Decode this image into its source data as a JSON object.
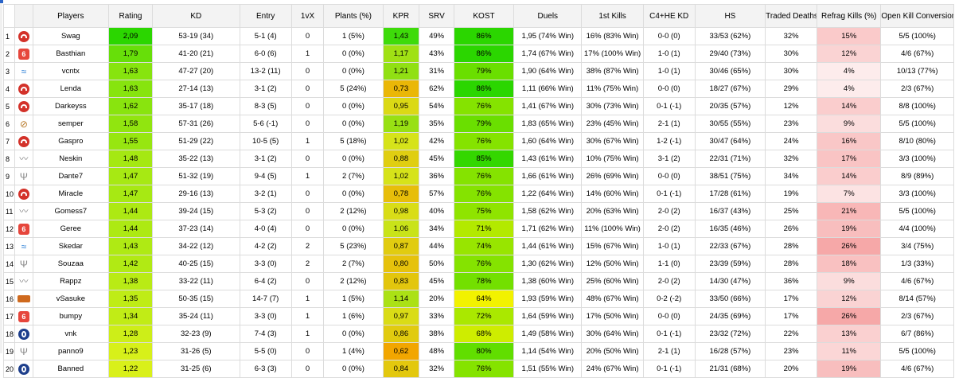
{
  "columns": [
    "Players",
    "Rating",
    "KD",
    "Entry",
    "1vX",
    "Plants (%)",
    "KPR",
    "SRV",
    "KOST",
    "Duels",
    "1st Kills",
    "C4+HE KD",
    "HS",
    "Traded Deaths",
    "Refrag Kills (%)",
    "Open Kill Conversion"
  ],
  "colors": {
    "rating_top": "#2bd600",
    "rating_bottom": "#d9f01a",
    "kpr_high": "#3edb0a",
    "kpr_mid": "#d6e41a",
    "kpr_low": "#f2a600",
    "kost_high": "#2bd600",
    "kost_low": "#f2f200",
    "refrag_high": "#f6a8a8",
    "refrag_low": "#fdecec"
  },
  "rows": [
    {
      "idx": "1",
      "logo": "red-circle-icon",
      "player": "Swag",
      "rating": "2,09",
      "kd": "53-19 (34)",
      "entry": "5-1 (4)",
      "onevx": "0",
      "plants": "1 (5%)",
      "kpr": "1,43",
      "srv": "49%",
      "kost": "86%",
      "duels": "1,95 (74% Win)",
      "first_kills": "16% (83% Win)",
      "c4he": "0-0 (0)",
      "hs": "33/53 (62%)",
      "traded": "32%",
      "refrag": "15%",
      "okc": "5/5 (100%)"
    },
    {
      "idx": "2",
      "logo": "hexagon-six-icon",
      "player": "Basthian",
      "rating": "1,79",
      "kd": "41-20 (21)",
      "entry": "6-0 (6)",
      "onevx": "1",
      "plants": "0 (0%)",
      "kpr": "1,17",
      "srv": "43%",
      "kost": "86%",
      "duels": "1,74 (67% Win)",
      "first_kills": "17% (100% Win)",
      "c4he": "1-0 (1)",
      "hs": "29/40 (73%)",
      "traded": "30%",
      "refrag": "12%",
      "okc": "4/6 (67%)"
    },
    {
      "idx": "3",
      "logo": "blue-wave-icon",
      "player": "vcntx",
      "rating": "1,63",
      "kd": "47-27 (20)",
      "entry": "13-2 (11)",
      "onevx": "0",
      "plants": "0 (0%)",
      "kpr": "1,21",
      "srv": "31%",
      "kost": "79%",
      "duels": "1,90 (64% Win)",
      "first_kills": "38% (87% Win)",
      "c4he": "1-0 (1)",
      "hs": "30/46 (65%)",
      "traded": "30%",
      "refrag": "4%",
      "okc": "10/13 (77%)"
    },
    {
      "idx": "4",
      "logo": "red-circle-icon",
      "player": "Lenda",
      "rating": "1,63",
      "kd": "27-14 (13)",
      "entry": "3-1 (2)",
      "onevx": "0",
      "plants": "5 (24%)",
      "kpr": "0,73",
      "srv": "62%",
      "kost": "86%",
      "duels": "1,11 (66% Win)",
      "first_kills": "11% (75% Win)",
      "c4he": "0-0 (0)",
      "hs": "18/27 (67%)",
      "traded": "29%",
      "refrag": "4%",
      "okc": "2/3 (67%)"
    },
    {
      "idx": "5",
      "logo": "red-circle-icon",
      "player": "Darkeyss",
      "rating": "1,62",
      "kd": "35-17 (18)",
      "entry": "8-3 (5)",
      "onevx": "0",
      "plants": "0 (0%)",
      "kpr": "0,95",
      "srv": "54%",
      "kost": "76%",
      "duels": "1,41 (67% Win)",
      "first_kills": "30% (73% Win)",
      "c4he": "0-1 (-1)",
      "hs": "20/35 (57%)",
      "traded": "12%",
      "refrag": "14%",
      "okc": "8/8 (100%)"
    },
    {
      "idx": "6",
      "logo": "striped-circle-icon",
      "player": "semper",
      "rating": "1,58",
      "kd": "57-31 (26)",
      "entry": "5-6 (-1)",
      "onevx": "0",
      "plants": "0 (0%)",
      "kpr": "1,19",
      "srv": "35%",
      "kost": "79%",
      "duels": "1,83 (65% Win)",
      "first_kills": "23% (45% Win)",
      "c4he": "2-1 (1)",
      "hs": "30/55 (55%)",
      "traded": "23%",
      "refrag": "9%",
      "okc": "5/5 (100%)"
    },
    {
      "idx": "7",
      "logo": "red-circle-icon",
      "player": "Gaspro",
      "rating": "1,55",
      "kd": "51-29 (22)",
      "entry": "10-5 (5)",
      "onevx": "1",
      "plants": "5 (18%)",
      "kpr": "1,02",
      "srv": "42%",
      "kost": "76%",
      "duels": "1,60 (64% Win)",
      "first_kills": "30% (67% Win)",
      "c4he": "1-2 (-1)",
      "hs": "30/47 (64%)",
      "traded": "24%",
      "refrag": "16%",
      "okc": "8/10 (80%)"
    },
    {
      "idx": "8",
      "logo": "wing-icon",
      "player": "Neskin",
      "rating": "1,48",
      "kd": "35-22 (13)",
      "entry": "3-1 (2)",
      "onevx": "0",
      "plants": "0 (0%)",
      "kpr": "0,88",
      "srv": "45%",
      "kost": "85%",
      "duels": "1,43 (61% Win)",
      "first_kills": "10% (75% Win)",
      "c4he": "3-1 (2)",
      "hs": "22/31 (71%)",
      "traded": "32%",
      "refrag": "17%",
      "okc": "3/3 (100%)"
    },
    {
      "idx": "9",
      "logo": "trident-icon",
      "player": "Dante7",
      "rating": "1,47",
      "kd": "51-32 (19)",
      "entry": "9-4 (5)",
      "onevx": "1",
      "plants": "2 (7%)",
      "kpr": "1,02",
      "srv": "36%",
      "kost": "76%",
      "duels": "1,66 (61% Win)",
      "first_kills": "26% (69% Win)",
      "c4he": "0-0 (0)",
      "hs": "38/51 (75%)",
      "traded": "34%",
      "refrag": "14%",
      "okc": "8/9 (89%)"
    },
    {
      "idx": "10",
      "logo": "red-circle-icon",
      "player": "Miracle",
      "rating": "1,47",
      "kd": "29-16 (13)",
      "entry": "3-2 (1)",
      "onevx": "0",
      "plants": "0 (0%)",
      "kpr": "0,78",
      "srv": "57%",
      "kost": "76%",
      "duels": "1,22 (64% Win)",
      "first_kills": "14% (60% Win)",
      "c4he": "0-1 (-1)",
      "hs": "17/28 (61%)",
      "traded": "19%",
      "refrag": "7%",
      "okc": "3/3 (100%)"
    },
    {
      "idx": "11",
      "logo": "wing-icon",
      "player": "Gomess7",
      "rating": "1,44",
      "kd": "39-24 (15)",
      "entry": "5-3 (2)",
      "onevx": "0",
      "plants": "2 (12%)",
      "kpr": "0,98",
      "srv": "40%",
      "kost": "75%",
      "duels": "1,58 (62% Win)",
      "first_kills": "20% (63% Win)",
      "c4he": "2-0 (2)",
      "hs": "16/37 (43%)",
      "traded": "25%",
      "refrag": "21%",
      "okc": "5/5 (100%)"
    },
    {
      "idx": "12",
      "logo": "hexagon-six-icon",
      "player": "Geree",
      "rating": "1,44",
      "kd": "37-23 (14)",
      "entry": "4-0 (4)",
      "onevx": "0",
      "plants": "0 (0%)",
      "kpr": "1,06",
      "srv": "34%",
      "kost": "71%",
      "duels": "1,71 (62% Win)",
      "first_kills": "11% (100% Win)",
      "c4he": "2-0 (2)",
      "hs": "16/35 (46%)",
      "traded": "26%",
      "refrag": "19%",
      "okc": "4/4 (100%)"
    },
    {
      "idx": "13",
      "logo": "blue-wave-icon",
      "player": "Skedar",
      "rating": "1,43",
      "kd": "34-22 (12)",
      "entry": "4-2 (2)",
      "onevx": "2",
      "plants": "5 (23%)",
      "kpr": "0,87",
      "srv": "44%",
      "kost": "74%",
      "duels": "1,44 (61% Win)",
      "first_kills": "15% (67% Win)",
      "c4he": "1-0 (1)",
      "hs": "22/33 (67%)",
      "traded": "28%",
      "refrag": "26%",
      "okc": "3/4 (75%)"
    },
    {
      "idx": "14",
      "logo": "trident-icon",
      "player": "Souzaa",
      "rating": "1,42",
      "kd": "40-25 (15)",
      "entry": "3-3 (0)",
      "onevx": "2",
      "plants": "2 (7%)",
      "kpr": "0,80",
      "srv": "50%",
      "kost": "76%",
      "duels": "1,30 (62% Win)",
      "first_kills": "12% (50% Win)",
      "c4he": "1-1 (0)",
      "hs": "23/39 (59%)",
      "traded": "28%",
      "refrag": "18%",
      "okc": "1/3 (33%)"
    },
    {
      "idx": "15",
      "logo": "wing-icon",
      "player": "Rappz",
      "rating": "1,38",
      "kd": "33-22 (11)",
      "entry": "6-4 (2)",
      "onevx": "0",
      "plants": "2 (12%)",
      "kpr": "0,83",
      "srv": "45%",
      "kost": "78%",
      "duels": "1,38 (60% Win)",
      "first_kills": "25% (60% Win)",
      "c4he": "2-0 (2)",
      "hs": "14/30 (47%)",
      "traded": "36%",
      "refrag": "9%",
      "okc": "4/6 (67%)"
    },
    {
      "idx": "16",
      "logo": "orange-banner-icon",
      "player": "vSasuke",
      "rating": "1,35",
      "kd": "50-35 (15)",
      "entry": "14-7 (7)",
      "onevx": "1",
      "plants": "1 (5%)",
      "kpr": "1,14",
      "srv": "20%",
      "kost": "64%",
      "duels": "1,93 (59% Win)",
      "first_kills": "48% (67% Win)",
      "c4he": "0-2 (-2)",
      "hs": "33/50 (66%)",
      "traded": "17%",
      "refrag": "12%",
      "okc": "8/14 (57%)"
    },
    {
      "idx": "17",
      "logo": "hexagon-six-icon",
      "player": "bumpy",
      "rating": "1,34",
      "kd": "35-24 (11)",
      "entry": "3-3 (0)",
      "onevx": "1",
      "plants": "1 (6%)",
      "kpr": "0,97",
      "srv": "33%",
      "kost": "72%",
      "duels": "1,64 (59% Win)",
      "first_kills": "17% (50% Win)",
      "c4he": "0-0 (0)",
      "hs": "24/35 (69%)",
      "traded": "17%",
      "refrag": "26%",
      "okc": "2/3 (67%)"
    },
    {
      "idx": "18",
      "logo": "blue-circle-icon",
      "player": "vnk",
      "rating": "1,28",
      "kd": "32-23 (9)",
      "entry": "7-4 (3)",
      "onevx": "1",
      "plants": "0 (0%)",
      "kpr": "0,86",
      "srv": "38%",
      "kost": "68%",
      "duels": "1,49 (58% Win)",
      "first_kills": "30% (64% Win)",
      "c4he": "0-1 (-1)",
      "hs": "23/32 (72%)",
      "traded": "22%",
      "refrag": "13%",
      "okc": "6/7 (86%)"
    },
    {
      "idx": "19",
      "logo": "trident-icon",
      "player": "panno9",
      "rating": "1,23",
      "kd": "31-26 (5)",
      "entry": "5-5 (0)",
      "onevx": "0",
      "plants": "1 (4%)",
      "kpr": "0,62",
      "srv": "48%",
      "kost": "80%",
      "duels": "1,14 (54% Win)",
      "first_kills": "20% (50% Win)",
      "c4he": "2-1 (1)",
      "hs": "16/28 (57%)",
      "traded": "23%",
      "refrag": "11%",
      "okc": "5/5 (100%)"
    },
    {
      "idx": "20",
      "logo": "blue-circle-icon",
      "player": "Banned",
      "rating": "1,22",
      "kd": "31-25 (6)",
      "entry": "6-3 (3)",
      "onevx": "0",
      "plants": "0 (0%)",
      "kpr": "0,84",
      "srv": "32%",
      "kost": "76%",
      "duels": "1,51 (55% Win)",
      "first_kills": "24% (67% Win)",
      "c4he": "0-1 (-1)",
      "hs": "21/31 (68%)",
      "traded": "20%",
      "refrag": "19%",
      "okc": "4/6 (67%)"
    }
  ]
}
